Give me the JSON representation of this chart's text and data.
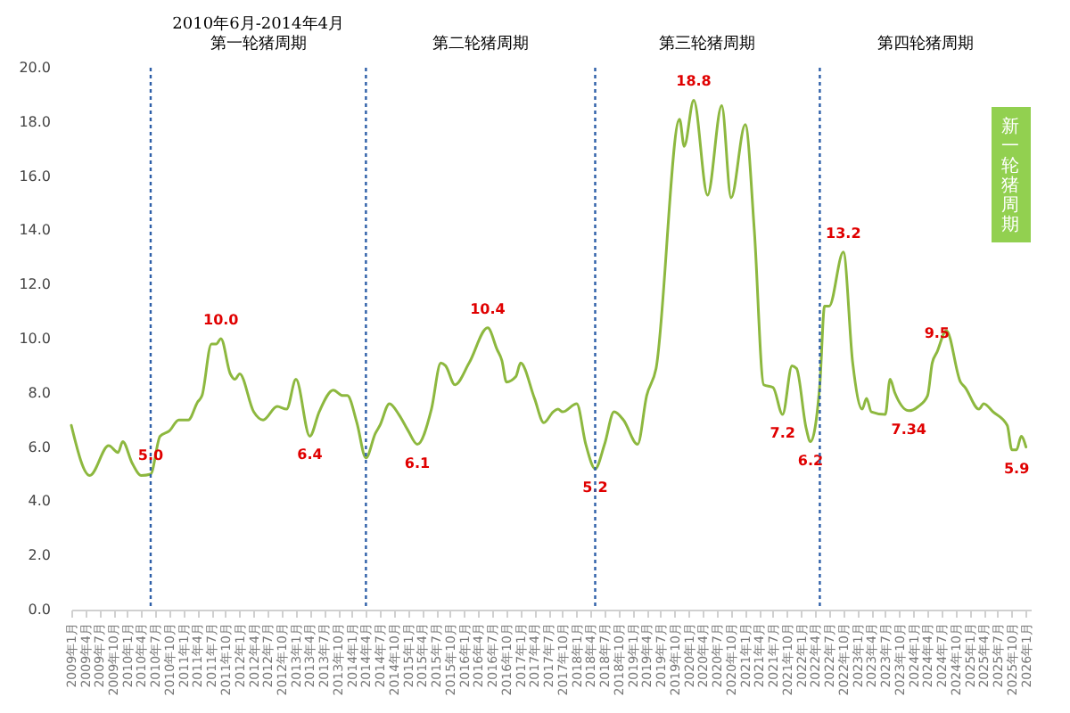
{
  "chart_data": {
    "type": "line",
    "x": [
      "2009-01",
      "2009-05",
      "2009-09",
      "2009-11",
      "2009-12",
      "2010-02",
      "2010-04",
      "2010-06",
      "2010-08",
      "2010-10",
      "2010-12",
      "2011-02",
      "2011-04",
      "2011-05",
      "2011-07",
      "2011-08",
      "2011-09",
      "2011-11",
      "2011-12",
      "2012-01",
      "2012-04",
      "2012-06",
      "2012-09",
      "2012-11",
      "2013-01",
      "2013-04",
      "2013-06",
      "2013-09",
      "2013-11",
      "2013-12",
      "2014-02",
      "2014-04",
      "2014-06",
      "2014-07",
      "2014-09",
      "2014-11",
      "2015-01",
      "2015-03",
      "2015-06",
      "2015-08",
      "2015-09",
      "2015-11",
      "2016-02",
      "2016-06",
      "2016-08",
      "2016-09",
      "2016-10",
      "2016-12",
      "2017-01",
      "2017-04",
      "2017-06",
      "2017-08",
      "2017-09",
      "2017-10",
      "2018-01",
      "2018-03",
      "2018-05",
      "2018-07",
      "2018-09",
      "2018-11",
      "2019-02",
      "2019-04",
      "2019-06",
      "2019-11",
      "2019-12",
      "2020-02",
      "2020-05",
      "2020-08",
      "2020-10",
      "2021-01",
      "2021-03",
      "2021-05",
      "2021-07",
      "2021-09",
      "2021-11",
      "2021-12",
      "2022-02",
      "2022-03",
      "2022-05",
      "2022-06",
      "2022-07",
      "2022-10",
      "2022-12",
      "2023-02",
      "2023-03",
      "2023-04",
      "2023-07",
      "2023-08",
      "2023-09",
      "2023-12",
      "2024-02",
      "2024-04",
      "2024-05",
      "2024-06",
      "2024-08",
      "2024-11",
      "2024-12",
      "2025-03",
      "2025-04",
      "2025-06",
      "2025-09",
      "2025-10",
      "2025-11",
      "2025-12",
      "2026-01"
    ],
    "series": [
      {
        "color": "#8db83f",
        "values": [
          6.8,
          4.95,
          6.05,
          5.8,
          6.2,
          5.4,
          4.95,
          5.0,
          6.4,
          6.6,
          7.0,
          7.0,
          7.65,
          7.9,
          9.8,
          9.8,
          10.0,
          8.7,
          8.5,
          8.7,
          7.3,
          7.0,
          7.5,
          7.4,
          8.5,
          6.4,
          7.3,
          8.1,
          7.9,
          7.9,
          6.9,
          5.6,
          6.5,
          6.8,
          7.6,
          7.2,
          6.6,
          6.1,
          7.4,
          9.1,
          9.0,
          8.3,
          9.1,
          10.4,
          9.6,
          9.2,
          8.4,
          8.6,
          9.1,
          7.8,
          6.9,
          7.3,
          7.4,
          7.3,
          7.6,
          6.1,
          5.2,
          6.1,
          7.3,
          7.0,
          6.1,
          7.9,
          8.9,
          18.1,
          17.1,
          18.8,
          15.3,
          18.6,
          15.2,
          17.9,
          14.0,
          8.3,
          8.2,
          7.2,
          9.0,
          8.9,
          6.7,
          6.2,
          8.3,
          11.2,
          11.2,
          13.2,
          9.1,
          7.4,
          7.8,
          7.3,
          7.2,
          8.5,
          8.0,
          7.34,
          7.5,
          7.9,
          9.1,
          9.5,
          10.3,
          8.4,
          8.2,
          7.4,
          7.6,
          7.3,
          6.8,
          5.9,
          5.9,
          6.4,
          6.0
        ],
        "value_labels": [
          null,
          null,
          null,
          null,
          null,
          null,
          null,
          "5.0",
          null,
          null,
          null,
          null,
          null,
          null,
          null,
          null,
          "10.0",
          null,
          null,
          null,
          null,
          null,
          null,
          null,
          null,
          "6.4",
          null,
          null,
          null,
          null,
          null,
          null,
          null,
          null,
          null,
          null,
          null,
          "6.1",
          null,
          null,
          null,
          null,
          null,
          "10.4",
          null,
          null,
          null,
          null,
          null,
          null,
          null,
          null,
          null,
          null,
          null,
          null,
          "5.2",
          null,
          null,
          null,
          null,
          null,
          null,
          null,
          null,
          "18.8",
          null,
          null,
          null,
          null,
          null,
          null,
          null,
          "7.2",
          null,
          null,
          null,
          "6.2",
          null,
          null,
          null,
          "13.2",
          null,
          null,
          null,
          null,
          null,
          null,
          null,
          "7.34",
          null,
          null,
          null,
          "9.5",
          null,
          null,
          null,
          null,
          null,
          null,
          null,
          null,
          "5.9",
          null,
          null
        ]
      }
    ],
    "xlim": [
      "2009-01",
      "2026-02"
    ],
    "xticks": [
      {
        "value": "2009-01",
        "label": "2009年1月"
      },
      {
        "value": "2009-04",
        "label": "2009年4月"
      },
      {
        "value": "2009-07",
        "label": "2009年7月"
      },
      {
        "value": "2009-10",
        "label": "2009年10月"
      },
      {
        "value": "2010-01",
        "label": "2010年1月"
      },
      {
        "value": "2010-04",
        "label": "2010年4月"
      },
      {
        "value": "2010-07",
        "label": "2010年7月"
      },
      {
        "value": "2010-10",
        "label": "2010年10月"
      },
      {
        "value": "2011-01",
        "label": "2011年1月"
      },
      {
        "value": "2011-04",
        "label": "2011年4月"
      },
      {
        "value": "2011-07",
        "label": "2011年7月"
      },
      {
        "value": "2011-10",
        "label": "2011年10月"
      },
      {
        "value": "2012-01",
        "label": "2012年1月"
      },
      {
        "value": "2012-04",
        "label": "2012年4月"
      },
      {
        "value": "2012-07",
        "label": "2012年7月"
      },
      {
        "value": "2012-10",
        "label": "2012年10月"
      },
      {
        "value": "2013-01",
        "label": "2013年1月"
      },
      {
        "value": "2013-04",
        "label": "2013年4月"
      },
      {
        "value": "2013-07",
        "label": "2013年7月"
      },
      {
        "value": "2013-10",
        "label": "2013年10月"
      },
      {
        "value": "2014-01",
        "label": "2014年1月"
      },
      {
        "value": "2014-04",
        "label": "2014年4月"
      },
      {
        "value": "2014-07",
        "label": "2014年7月"
      },
      {
        "value": "2014-10",
        "label": "2014年10月"
      },
      {
        "value": "2015-01",
        "label": "2015年1月"
      },
      {
        "value": "2015-04",
        "label": "2015年4月"
      },
      {
        "value": "2015-07",
        "label": "2015年7月"
      },
      {
        "value": "2015-10",
        "label": "2015年10月"
      },
      {
        "value": "2016-01",
        "label": "2016年1月"
      },
      {
        "value": "2016-04",
        "label": "2016年4月"
      },
      {
        "value": "2016-07",
        "label": "2016年7月"
      },
      {
        "value": "2016-10",
        "label": "2016年10月"
      },
      {
        "value": "2017-01",
        "label": "2017年1月"
      },
      {
        "value": "2017-04",
        "label": "2017年4月"
      },
      {
        "value": "2017-07",
        "label": "2017年7月"
      },
      {
        "value": "2017-10",
        "label": "2017年10月"
      },
      {
        "value": "2018-01",
        "label": "2018年1月"
      },
      {
        "value": "2018-04",
        "label": "2018年4月"
      },
      {
        "value": "2018-07",
        "label": "2018年7月"
      },
      {
        "value": "2018-10",
        "label": "2018年10月"
      },
      {
        "value": "2019-01",
        "label": "2019年1月"
      },
      {
        "value": "2019-04",
        "label": "2019年4月"
      },
      {
        "value": "2019-07",
        "label": "2019年7月"
      },
      {
        "value": "2019-10",
        "label": "2019年10月"
      },
      {
        "value": "2020-01",
        "label": "2020年1月"
      },
      {
        "value": "2020-04",
        "label": "2020年4月"
      },
      {
        "value": "2020-07",
        "label": "2020年7月"
      },
      {
        "value": "2020-10",
        "label": "2020年10月"
      },
      {
        "value": "2021-01",
        "label": "2021年1月"
      },
      {
        "value": "2021-04",
        "label": "2021年4月"
      },
      {
        "value": "2021-07",
        "label": "2021年7月"
      },
      {
        "value": "2021-10",
        "label": "2021年10月"
      },
      {
        "value": "2022-01",
        "label": "2022年1月"
      },
      {
        "value": "2022-04",
        "label": "2022年4月"
      },
      {
        "value": "2022-07",
        "label": "2022年7月"
      },
      {
        "value": "2022-10",
        "label": "2022年10月"
      },
      {
        "value": "2023-01",
        "label": "2023年1月"
      },
      {
        "value": "2023-04",
        "label": "2023年4月"
      },
      {
        "value": "2023-07",
        "label": "2023年7月"
      },
      {
        "value": "2023-10",
        "label": "2023年10月"
      },
      {
        "value": "2024-01",
        "label": "2024年1月"
      },
      {
        "value": "2024-04",
        "label": "2024年4月"
      },
      {
        "value": "2024-07",
        "label": "2024年7月"
      },
      {
        "value": "2024-10",
        "label": "2024年10月"
      },
      {
        "value": "2025-01",
        "label": "2025年1月"
      },
      {
        "value": "2025-04",
        "label": "2025年4月"
      },
      {
        "value": "2025-07",
        "label": "2025年7月"
      },
      {
        "value": "2025-10",
        "label": "2025年10月"
      },
      {
        "value": "2026-01",
        "label": "2026年1月"
      }
    ],
    "ylim": [
      0,
      20
    ],
    "yticks": [
      {
        "value": 0,
        "label": "0.0"
      },
      {
        "value": 2,
        "label": "2.0"
      },
      {
        "value": 4,
        "label": "4.0"
      },
      {
        "value": 6,
        "label": "6.0"
      },
      {
        "value": 8,
        "label": "8.0"
      },
      {
        "value": 10,
        "label": "10.0"
      },
      {
        "value": 12,
        "label": "12.0"
      },
      {
        "value": 14,
        "label": "14.0"
      },
      {
        "value": 16,
        "label": "16.0"
      },
      {
        "value": 18,
        "label": "18.0"
      },
      {
        "value": 20,
        "label": "20.0"
      }
    ],
    "ref_lines": [
      {
        "axis": "x",
        "value": "2010-06",
        "color": "#2e5fa8",
        "line_style": "dotted"
      },
      {
        "axis": "x",
        "value": "2014-04",
        "color": "#2e5fa8",
        "line_style": "dotted"
      },
      {
        "axis": "x",
        "value": "2018-05",
        "color": "#2e5fa8",
        "line_style": "dotted"
      },
      {
        "axis": "x",
        "value": "2022-05",
        "color": "#2e5fa8",
        "line_style": "dotted"
      }
    ],
    "annotations": [
      "2010年6月-2014年4月",
      "第一轮猪周期",
      "第二轮猪周期",
      "第三轮猪周期",
      "第四轮猪周期",
      "新一轮猪周期"
    ]
  }
}
